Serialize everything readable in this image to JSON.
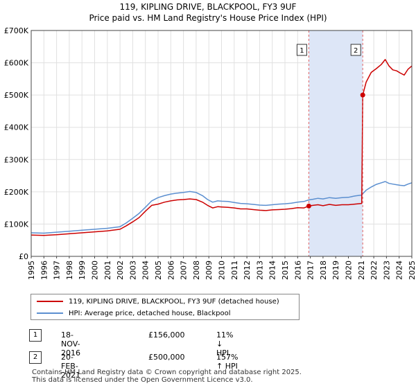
{
  "title_line1": "119, KIPLING DRIVE, BLACKPOOL, FY3 9UF",
  "title_line2": "Price paid vs. HM Land Registry's House Price Index (HPI)",
  "colors": {
    "property": "#cc0000",
    "hpi": "#5b8fd0",
    "highlight": "#dde6f7",
    "grid": "#e0e0e0",
    "marker_line": "#e06060"
  },
  "chart_data": {
    "type": "line",
    "title": "119, KIPLING DRIVE, BLACKPOOL, FY3 9UF — Price paid vs. HM Land Registry's House Price Index (HPI)",
    "xlabel": "",
    "ylabel": "",
    "xlim": [
      1995,
      2025
    ],
    "ylim": [
      0,
      700000
    ],
    "y_ticks": [
      0,
      100000,
      200000,
      300000,
      400000,
      500000,
      600000,
      700000
    ],
    "y_tick_labels": [
      "£0",
      "£100K",
      "£200K",
      "£300K",
      "£400K",
      "£500K",
      "£600K",
      "£700K"
    ],
    "x_tick_labels": [
      "1995",
      "1996",
      "1997",
      "1998",
      "1999",
      "2000",
      "2001",
      "2002",
      "2003",
      "2004",
      "2005",
      "2006",
      "2007",
      "2008",
      "2009",
      "2010",
      "2011",
      "2012",
      "2013",
      "2014",
      "2015",
      "2016",
      "2017",
      "2018",
      "2019",
      "2020",
      "2021",
      "2022",
      "2023",
      "2024",
      "2025"
    ],
    "grid": true,
    "highlight_span": [
      2016.88,
      2021.13
    ],
    "series": [
      {
        "name": "119, KIPLING DRIVE, BLACKPOOL, FY3 9UF (detached house)",
        "color": "#cc0000",
        "points": [
          [
            1995.0,
            66000
          ],
          [
            1996.0,
            65000
          ],
          [
            1997.0,
            67000
          ],
          [
            1998.0,
            70000
          ],
          [
            1999.0,
            73000
          ],
          [
            2000.0,
            76000
          ],
          [
            2001.0,
            79000
          ],
          [
            2002.0,
            84000
          ],
          [
            2002.5,
            95000
          ],
          [
            2003.0,
            107000
          ],
          [
            2003.5,
            120000
          ],
          [
            2004.0,
            140000
          ],
          [
            2004.5,
            158000
          ],
          [
            2005.0,
            162000
          ],
          [
            2005.5,
            168000
          ],
          [
            2006.0,
            172000
          ],
          [
            2006.5,
            175000
          ],
          [
            2007.0,
            176000
          ],
          [
            2007.5,
            178000
          ],
          [
            2008.0,
            176000
          ],
          [
            2008.5,
            168000
          ],
          [
            2008.9,
            158000
          ],
          [
            2009.3,
            150000
          ],
          [
            2009.7,
            154000
          ],
          [
            2010.0,
            153000
          ],
          [
            2010.5,
            152000
          ],
          [
            2011.0,
            150000
          ],
          [
            2011.5,
            147000
          ],
          [
            2012.0,
            147000
          ],
          [
            2012.5,
            145000
          ],
          [
            2013.0,
            143000
          ],
          [
            2013.5,
            142000
          ],
          [
            2014.0,
            144000
          ],
          [
            2014.5,
            145000
          ],
          [
            2015.0,
            146000
          ],
          [
            2015.5,
            148000
          ],
          [
            2016.0,
            151000
          ],
          [
            2016.5,
            150000
          ],
          [
            2016.88,
            156000
          ],
          [
            2017.2,
            158000
          ],
          [
            2017.6,
            160000
          ],
          [
            2018.0,
            157000
          ],
          [
            2018.5,
            161000
          ],
          [
            2019.0,
            158000
          ],
          [
            2019.5,
            160000
          ],
          [
            2020.0,
            160000
          ],
          [
            2020.5,
            162000
          ],
          [
            2021.05,
            164000
          ],
          [
            2021.13,
            500000
          ],
          [
            2021.4,
            540000
          ],
          [
            2021.8,
            570000
          ],
          [
            2022.2,
            582000
          ],
          [
            2022.6,
            595000
          ],
          [
            2022.9,
            610000
          ],
          [
            2023.2,
            590000
          ],
          [
            2023.5,
            578000
          ],
          [
            2023.8,
            575000
          ],
          [
            2024.1,
            568000
          ],
          [
            2024.4,
            562000
          ],
          [
            2024.7,
            580000
          ],
          [
            2025.0,
            590000
          ]
        ]
      },
      {
        "name": "HPI: Average price, detached house, Blackpool",
        "color": "#5b8fd0",
        "points": [
          [
            1995.0,
            73000
          ],
          [
            1996.0,
            72000
          ],
          [
            1997.0,
            75000
          ],
          [
            1998.0,
            78000
          ],
          [
            1999.0,
            81000
          ],
          [
            2000.0,
            84000
          ],
          [
            2001.0,
            87000
          ],
          [
            2002.0,
            92000
          ],
          [
            2002.5,
            104000
          ],
          [
            2003.0,
            118000
          ],
          [
            2003.5,
            133000
          ],
          [
            2004.0,
            152000
          ],
          [
            2004.5,
            172000
          ],
          [
            2005.0,
            182000
          ],
          [
            2005.5,
            188000
          ],
          [
            2006.0,
            193000
          ],
          [
            2006.5,
            196000
          ],
          [
            2007.0,
            198000
          ],
          [
            2007.5,
            201000
          ],
          [
            2008.0,
            198000
          ],
          [
            2008.5,
            188000
          ],
          [
            2008.9,
            176000
          ],
          [
            2009.3,
            168000
          ],
          [
            2009.7,
            172000
          ],
          [
            2010.0,
            171000
          ],
          [
            2010.5,
            170000
          ],
          [
            2011.0,
            167000
          ],
          [
            2011.5,
            164000
          ],
          [
            2012.0,
            163000
          ],
          [
            2012.5,
            161000
          ],
          [
            2013.0,
            159000
          ],
          [
            2013.5,
            158000
          ],
          [
            2014.0,
            160000
          ],
          [
            2014.5,
            162000
          ],
          [
            2015.0,
            163000
          ],
          [
            2015.5,
            165000
          ],
          [
            2016.0,
            168000
          ],
          [
            2016.5,
            170000
          ],
          [
            2016.88,
            175000
          ],
          [
            2017.2,
            177000
          ],
          [
            2017.6,
            180000
          ],
          [
            2018.0,
            178000
          ],
          [
            2018.5,
            182000
          ],
          [
            2019.0,
            180000
          ],
          [
            2019.5,
            182000
          ],
          [
            2020.0,
            183000
          ],
          [
            2020.5,
            187000
          ],
          [
            2021.05,
            190000
          ],
          [
            2021.13,
            194000
          ],
          [
            2021.4,
            205000
          ],
          [
            2021.8,
            215000
          ],
          [
            2022.2,
            223000
          ],
          [
            2022.6,
            228000
          ],
          [
            2022.9,
            232000
          ],
          [
            2023.2,
            226000
          ],
          [
            2023.5,
            224000
          ],
          [
            2023.8,
            222000
          ],
          [
            2024.1,
            220000
          ],
          [
            2024.4,
            219000
          ],
          [
            2024.7,
            224000
          ],
          [
            2025.0,
            228000
          ]
        ]
      }
    ],
    "annotations": [
      {
        "label": "1",
        "x": 2016.88,
        "y": 156000
      },
      {
        "label": "2",
        "x": 2021.13,
        "y": 500000
      }
    ]
  },
  "legend": {
    "property_label": "119, KIPLING DRIVE, BLACKPOOL, FY3 9UF (detached house)",
    "hpi_label": "HPI: Average price, detached house, Blackpool"
  },
  "sales": [
    {
      "num": "1",
      "date": "18-NOV-2016",
      "price": "£156,000",
      "hpi": "11% ↓ HPI"
    },
    {
      "num": "2",
      "date": "20-FEB-2021",
      "price": "£500,000",
      "hpi": "157% ↑ HPI"
    }
  ],
  "footer": {
    "line1": "Contains HM Land Registry data © Crown copyright and database right 2025.",
    "line2": "This data is licensed under the Open Government Licence v3.0."
  }
}
